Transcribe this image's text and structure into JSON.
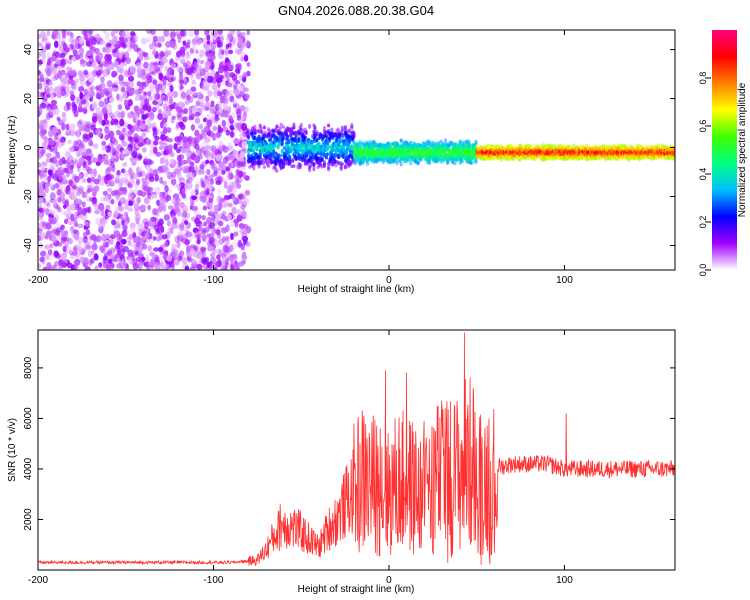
{
  "figure_title": "GN04.2026.088.20.38.G04",
  "chart_data": [
    {
      "type": "heatmap",
      "title": "GN04.2026.088.20.38.G04",
      "xlabel": "Height of straight line (km)",
      "ylabel": "Frequency (Hz)",
      "xlim": [
        -200,
        163
      ],
      "ylim": [
        -50,
        48
      ],
      "x_ticks": [
        -200,
        -100,
        0,
        100
      ],
      "y_ticks": [
        -40,
        -20,
        0,
        20,
        40
      ],
      "colorbar": {
        "label": "Normalized spectral amplitude",
        "range": [
          0,
          1
        ],
        "ticks": [
          0.0,
          0.2,
          0.4,
          0.6,
          0.8
        ],
        "tick_labels": [
          "0.0",
          "0.2",
          "0.4",
          "0.6",
          "0.8"
        ],
        "colors": [
          "#ffffff",
          "#a000ff",
          "#0000ff",
          "#00c0ff",
          "#00ff80",
          "#40ff00",
          "#ffff00",
          "#ff8000",
          "#ff0000",
          "#ff0080"
        ]
      },
      "regions": [
        {
          "x_range": [
            -200,
            -80
          ],
          "freq_range": [
            -50,
            48
          ],
          "amplitude": [
            0.0,
            0.1
          ],
          "description": "broadband noise"
        },
        {
          "x_range": [
            -80,
            -20
          ],
          "freq_center": 0,
          "freq_halfwidth": [
            6,
            10
          ],
          "amplitude": [
            0.1,
            0.45
          ]
        },
        {
          "x_range": [
            -20,
            50
          ],
          "freq_center": -2,
          "freq_halfwidth": [
            3,
            5
          ],
          "amplitude": [
            0.3,
            0.6
          ]
        },
        {
          "x_range": [
            50,
            163
          ],
          "freq_center": -2,
          "freq_halfwidth": [
            2,
            3
          ],
          "amplitude": [
            0.6,
            0.95
          ]
        }
      ]
    },
    {
      "type": "line",
      "xlabel": "Height of straight line (km)",
      "ylabel": "SNR (10 * v/v)",
      "xlim": [
        -200,
        163
      ],
      "ylim": [
        0,
        9500
      ],
      "x_ticks": [
        -200,
        -100,
        0,
        100
      ],
      "y_ticks": [
        2000,
        4000,
        6000,
        8000
      ],
      "color": "#ff3030",
      "series": [
        {
          "name": "SNR",
          "x": [
            -200,
            -180,
            -160,
            -140,
            -120,
            -100,
            -90,
            -80,
            -75,
            -70,
            -65,
            -60,
            -55,
            -50,
            -45,
            -40,
            -35,
            -30,
            -25,
            -20,
            -15,
            -10,
            -5,
            0,
            5,
            10,
            15,
            20,
            25,
            30,
            35,
            40,
            45,
            50,
            55,
            60,
            62,
            65,
            70,
            80,
            90,
            95,
            100,
            110,
            120,
            130,
            140,
            150,
            163
          ],
          "values": [
            300,
            300,
            300,
            300,
            300,
            300,
            300,
            350,
            400,
            800,
            1400,
            1800,
            1700,
            1500,
            1200,
            900,
            1600,
            2000,
            2600,
            3200,
            3600,
            3400,
            3300,
            3000,
            3500,
            3400,
            3200,
            2800,
            3900,
            3500,
            3800,
            3800,
            4400,
            3600,
            3600,
            3600,
            4100,
            4100,
            4200,
            4200,
            4200,
            4100,
            4000,
            4000,
            4000,
            4000,
            4000,
            4000,
            4000
          ],
          "peaks": [
            {
              "x": -62,
              "y": 2600
            },
            {
              "x": -20,
              "y": 5800
            },
            {
              "x": -5,
              "y": 5600
            },
            {
              "x": -2,
              "y": 7900
            },
            {
              "x": 10,
              "y": 7800
            },
            {
              "x": 20,
              "y": 5900
            },
            {
              "x": 30,
              "y": 6700
            },
            {
              "x": 32,
              "y": 6400
            },
            {
              "x": 43,
              "y": 9400
            },
            {
              "x": 48,
              "y": 7200
            },
            {
              "x": 57,
              "y": 6000
            },
            {
              "x": 101,
              "y": 6200
            }
          ]
        }
      ]
    }
  ]
}
